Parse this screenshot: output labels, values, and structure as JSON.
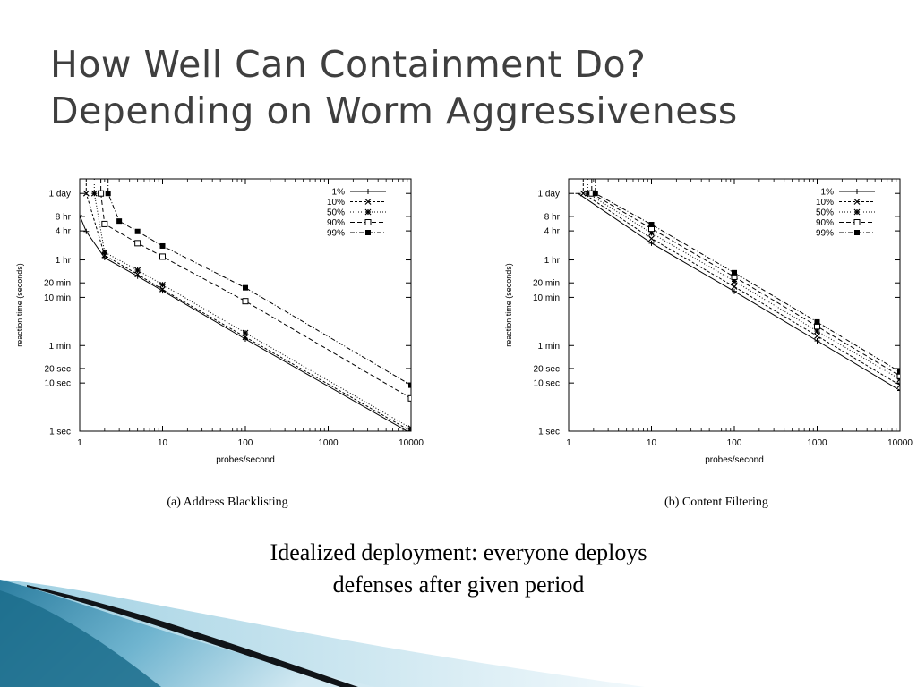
{
  "slide": {
    "title_line1": "How Well Can Containment Do?",
    "title_line2": "Depending on Worm Aggressiveness",
    "caption_line1": "Idealized deployment: everyone deploys",
    "caption_line2": "defenses after given period"
  },
  "chart_data": [
    {
      "type": "line",
      "subtitle": "(a) Address Blacklisting",
      "xlabel": "probes/second",
      "ylabel": "reaction time (seconds)",
      "xscale": "log",
      "yscale": "log",
      "xlim": [
        1,
        10000
      ],
      "ylim": [
        1,
        172800
      ],
      "xticks": [
        {
          "v": 1,
          "label": "1"
        },
        {
          "v": 10,
          "label": "10"
        },
        {
          "v": 100,
          "label": "100"
        },
        {
          "v": 1000,
          "label": "1000"
        },
        {
          "v": 10000,
          "label": "10000"
        }
      ],
      "yticks": [
        {
          "v": 1,
          "label": "1 sec"
        },
        {
          "v": 10,
          "label": "10 sec"
        },
        {
          "v": 20,
          "label": "20 sec"
        },
        {
          "v": 60,
          "label": "1 min"
        },
        {
          "v": 600,
          "label": "10 min"
        },
        {
          "v": 1200,
          "label": "20 min"
        },
        {
          "v": 3600,
          "label": "1 hr"
        },
        {
          "v": 14400,
          "label": "4 hr"
        },
        {
          "v": 28800,
          "label": "8 hr"
        },
        {
          "v": 86400,
          "label": "1 day"
        }
      ],
      "legend": "top-right",
      "series": [
        {
          "name": "1%",
          "marker": "plus",
          "dash": "",
          "x": [
            1,
            1.2,
            2,
            5,
            10,
            100,
            10000
          ],
          "y": [
            30000,
            14000,
            4000,
            1650,
            820,
            82,
            0.9
          ]
        },
        {
          "name": "10%",
          "marker": "x",
          "dash": "3,2",
          "x": [
            1.2,
            1.2,
            2,
            5,
            10,
            100,
            10000
          ],
          "y": [
            172800,
            86400,
            4500,
            1800,
            880,
            90,
            1.0
          ]
        },
        {
          "name": "50%",
          "marker": "asterisk",
          "dash": "1,2",
          "x": [
            1.5,
            1.5,
            2,
            5,
            10,
            100,
            10000
          ],
          "y": [
            172800,
            86400,
            5200,
            2200,
            1100,
            110,
            1.15
          ]
        },
        {
          "name": "90%",
          "marker": "square-open",
          "dash": "5,3",
          "x": [
            1.8,
            1.8,
            2,
            5,
            10,
            100,
            10000
          ],
          "y": [
            172800,
            86400,
            20000,
            8000,
            4200,
            500,
            4.8
          ]
        },
        {
          "name": "99%",
          "marker": "square-filled",
          "dash": "5,2,1,2",
          "x": [
            2.2,
            2.2,
            3,
            5,
            10,
            100,
            10000
          ],
          "y": [
            172800,
            86400,
            23000,
            14000,
            7000,
            950,
            9
          ]
        }
      ]
    },
    {
      "type": "line",
      "subtitle": "(b) Content Filtering",
      "xlabel": "probes/second",
      "ylabel": "reaction time (seconds)",
      "xscale": "log",
      "yscale": "log",
      "xlim": [
        1,
        10000
      ],
      "ylim": [
        1,
        172800
      ],
      "xticks": [
        {
          "v": 1,
          "label": "1"
        },
        {
          "v": 10,
          "label": "10"
        },
        {
          "v": 100,
          "label": "100"
        },
        {
          "v": 1000,
          "label": "1000"
        },
        {
          "v": 10000,
          "label": "10000"
        }
      ],
      "yticks": [
        {
          "v": 1,
          "label": "1 sec"
        },
        {
          "v": 10,
          "label": "10 sec"
        },
        {
          "v": 20,
          "label": "20 sec"
        },
        {
          "v": 60,
          "label": "1 min"
        },
        {
          "v": 600,
          "label": "10 min"
        },
        {
          "v": 1200,
          "label": "20 min"
        },
        {
          "v": 3600,
          "label": "1 hr"
        },
        {
          "v": 14400,
          "label": "4 hr"
        },
        {
          "v": 28800,
          "label": "8 hr"
        },
        {
          "v": 86400,
          "label": "1 day"
        }
      ],
      "legend": "top-right",
      "series": [
        {
          "name": "1%",
          "marker": "plus",
          "dash": "",
          "x": [
            1.3,
            1.3,
            10,
            100,
            1000,
            10000
          ],
          "y": [
            172800,
            86400,
            8000,
            800,
            75,
            7
          ]
        },
        {
          "name": "10%",
          "marker": "x",
          "dash": "3,2",
          "x": [
            1.5,
            1.5,
            10,
            100,
            1000,
            10000
          ],
          "y": [
            172800,
            86400,
            10000,
            1000,
            95,
            9
          ]
        },
        {
          "name": "50%",
          "marker": "asterisk",
          "dash": "1,2",
          "x": [
            1.7,
            1.7,
            10,
            100,
            1000,
            10000
          ],
          "y": [
            172800,
            86400,
            13000,
            1300,
            120,
            12
          ]
        },
        {
          "name": "90%",
          "marker": "square-open",
          "dash": "5,3",
          "x": [
            1.9,
            1.9,
            10,
            100,
            1000,
            10000
          ],
          "y": [
            172800,
            86400,
            16000,
            1600,
            150,
            14
          ]
        },
        {
          "name": "99%",
          "marker": "square-filled",
          "dash": "5,2,1,2",
          "x": [
            2.1,
            2.1,
            10,
            100,
            1000,
            10000
          ],
          "y": [
            172800,
            86400,
            19500,
            1950,
            185,
            17
          ]
        }
      ]
    }
  ]
}
